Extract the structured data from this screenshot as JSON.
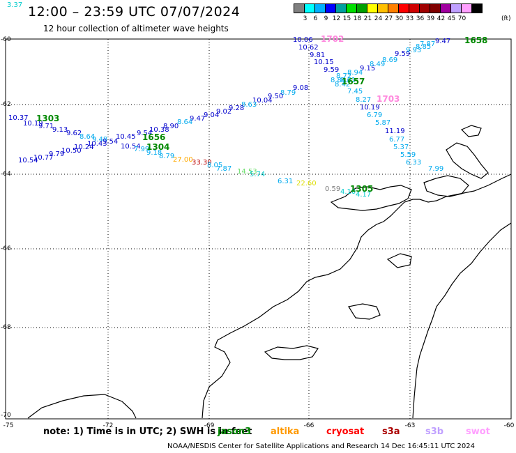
{
  "header": {
    "title": "12:00 – 23:59 UTC 07/07/2024",
    "subtitle": "12 hour collection of altimeter wave heights"
  },
  "legend": {
    "unit": "(ft)",
    "colors": [
      "#808080",
      "#00ffff",
      "#00b0ff",
      "#0000ff",
      "#00a0a0",
      "#00e000",
      "#00a000",
      "#ffff00",
      "#ffc000",
      "#ff8000",
      "#ff0000",
      "#d00000",
      "#a00000",
      "#800000",
      "#a000a0",
      "#c0a0ff",
      "#ffa0ff",
      "#000000"
    ],
    "labels": [
      "3",
      "6",
      "9",
      "12",
      "15",
      "18",
      "21",
      "24",
      "27",
      "30",
      "33",
      "36",
      "39",
      "42",
      "45",
      "70"
    ]
  },
  "axes": {
    "lon_ticks": [
      "-75",
      "-72",
      "-69",
      "-66",
      "-63",
      "-60"
    ],
    "lat_ticks": [
      "-60",
      "-62",
      "-64",
      "-66",
      "-68",
      "-70"
    ]
  },
  "observations": [
    {
      "text": "10.06",
      "color": "#0000cc"
    },
    {
      "text": "10.62",
      "color": "#0000cc"
    },
    {
      "text": "9.81",
      "color": "#0000cc"
    },
    {
      "text": "10.15",
      "color": "#0000cc"
    },
    {
      "text": "9.59",
      "color": "#0000cc"
    },
    {
      "text": "9.15",
      "color": "#0000cc"
    },
    {
      "text": "8.94",
      "color": "#00aaee"
    },
    {
      "text": "8.72",
      "color": "#00aaee"
    },
    {
      "text": "8.84",
      "color": "#00aaee"
    },
    {
      "text": "8.49",
      "color": "#00aaee"
    },
    {
      "text": "8.69",
      "color": "#00aaee"
    },
    {
      "text": "9.59",
      "color": "#0000cc"
    },
    {
      "text": "9.93",
      "color": "#00aaee"
    },
    {
      "text": "8.85",
      "color": "#00aaee"
    },
    {
      "text": "9.47",
      "color": "#0000cc"
    },
    {
      "text": "7.87",
      "color": "#00aaee"
    },
    {
      "text": "8.61",
      "color": "#00aaee"
    },
    {
      "text": "8.42",
      "color": "#00aaee"
    },
    {
      "text": "7.45",
      "color": "#00aaee"
    },
    {
      "text": "8.27",
      "color": "#00aaee"
    },
    {
      "text": "10.19",
      "color": "#0000cc"
    },
    {
      "text": "6.79",
      "color": "#00aaee"
    },
    {
      "text": "5.87",
      "color": "#00aaee"
    },
    {
      "text": "11.19",
      "color": "#0000cc"
    },
    {
      "text": "6.77",
      "color": "#00aaee"
    },
    {
      "text": "5.37",
      "color": "#00aaee"
    },
    {
      "text": "5.59",
      "color": "#00aaee"
    },
    {
      "text": "6.33",
      "color": "#00aaee"
    },
    {
      "text": "7.99",
      "color": "#00aaee"
    },
    {
      "text": "9.08",
      "color": "#0000cc"
    },
    {
      "text": "8.79",
      "color": "#00aaee"
    },
    {
      "text": "9.50",
      "color": "#0000cc"
    },
    {
      "text": "10.04",
      "color": "#0000cc"
    },
    {
      "text": "8.63",
      "color": "#00aaee"
    },
    {
      "text": "9.28",
      "color": "#0000cc"
    },
    {
      "text": "9.02",
      "color": "#0000cc"
    },
    {
      "text": "9.04",
      "color": "#0000cc"
    },
    {
      "text": "9.47",
      "color": "#0000cc"
    },
    {
      "text": "8.64",
      "color": "#00aaee"
    },
    {
      "text": "8.90",
      "color": "#0000cc"
    },
    {
      "text": "10.38",
      "color": "#0000cc"
    },
    {
      "text": "9.54",
      "color": "#0000cc"
    },
    {
      "text": "10.45",
      "color": "#0000cc"
    },
    {
      "text": "10.54",
      "color": "#0000cc"
    },
    {
      "text": "10.37",
      "color": "#0000cc"
    },
    {
      "text": "10.19",
      "color": "#0000cc"
    },
    {
      "text": "9.71",
      "color": "#0000cc"
    },
    {
      "text": "9.13",
      "color": "#0000cc"
    },
    {
      "text": "9.62",
      "color": "#0000cc"
    },
    {
      "text": "8.64",
      "color": "#00aaee"
    },
    {
      "text": "9.48",
      "color": "#00aaee"
    },
    {
      "text": "10.24",
      "color": "#0000cc"
    },
    {
      "text": "10.43",
      "color": "#0000cc"
    },
    {
      "text": "9.54",
      "color": "#0000cc"
    },
    {
      "text": "10.50",
      "color": "#0000cc"
    },
    {
      "text": "9.79",
      "color": "#0000cc"
    },
    {
      "text": "10.77",
      "color": "#0000cc"
    },
    {
      "text": "10.54",
      "color": "#0000cc"
    },
    {
      "text": "7.99",
      "color": "#00aaee"
    },
    {
      "text": "9.18",
      "color": "#00aaee"
    },
    {
      "text": "8.79",
      "color": "#00aaee"
    },
    {
      "text": "27.00",
      "color": "#ffaa00"
    },
    {
      "text": "33.30",
      "color": "#bb0000"
    },
    {
      "text": "8.05",
      "color": "#00aaee"
    },
    {
      "text": "7.87",
      "color": "#00aaee"
    },
    {
      "text": "14.53",
      "color": "#66dd66"
    },
    {
      "text": "5.74",
      "color": "#00cccc"
    },
    {
      "text": "6.31",
      "color": "#00aaee"
    },
    {
      "text": "22.60",
      "color": "#dddd00"
    },
    {
      "text": "0.59",
      "color": "#808080"
    },
    {
      "text": "4.10",
      "color": "#00cccc"
    },
    {
      "text": "4.17",
      "color": "#00cccc"
    },
    {
      "text": "3.37",
      "color": "#00cccc"
    }
  ],
  "time_labels": [
    {
      "text": "1702",
      "color": "#ff88dd"
    },
    {
      "text": "1658",
      "color": "#008800"
    },
    {
      "text": "1657",
      "color": "#008800"
    },
    {
      "text": "1703",
      "color": "#ff88dd"
    },
    {
      "text": "1303",
      "color": "#008800"
    },
    {
      "text": "1656",
      "color": "#008800"
    },
    {
      "text": "1304",
      "color": "#008800"
    },
    {
      "text": "1305",
      "color": "#008800"
    }
  ],
  "note": "note:  1) Time is in UTC;  2) SWH is in feet",
  "satellites": [
    {
      "name": "jason3",
      "color": "#008800"
    },
    {
      "name": "altika",
      "color": "#ff9900"
    },
    {
      "name": "cryosat",
      "color": "#ff0000"
    },
    {
      "name": "s3a",
      "color": "#aa0000"
    },
    {
      "name": "s3b",
      "color": "#c0a0ff"
    },
    {
      "name": "swot",
      "color": "#ffa0ff"
    }
  ],
  "footer": "NOAA/NESDIS Center for Satellite Applications and Research    14 Dec 16:45:11 UTC 2024"
}
